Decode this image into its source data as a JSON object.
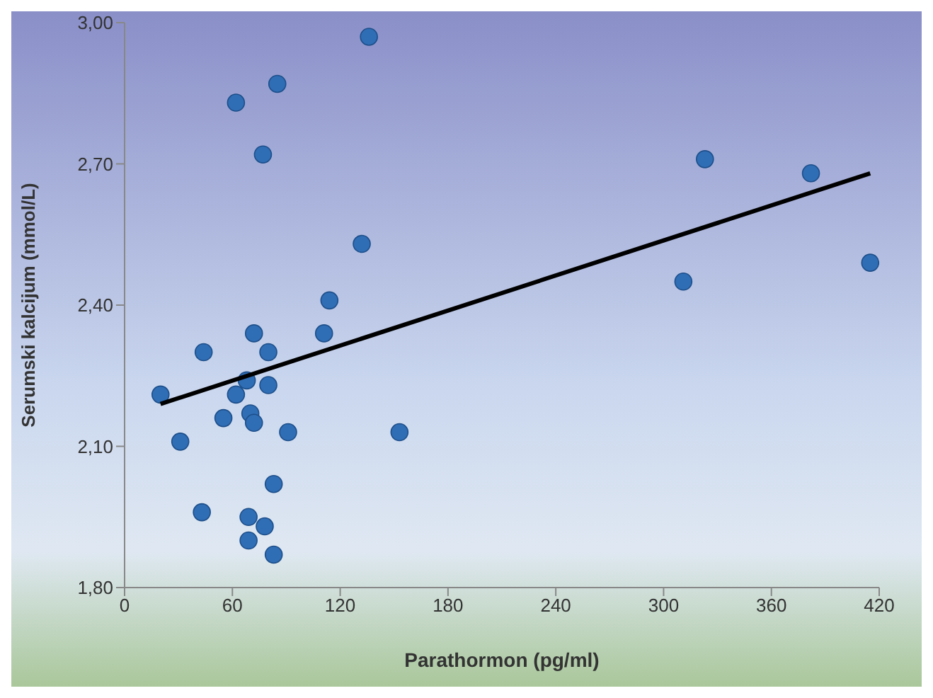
{
  "chart_data": {
    "type": "scatter",
    "xlabel": "Parathormon (pg/ml)",
    "ylabel": "Serumski kalcijum (mmol/L)",
    "xlim": [
      0,
      420
    ],
    "xticks": [
      0,
      60,
      120,
      180,
      240,
      300,
      360,
      420
    ],
    "ylim": [
      1.8,
      3.0
    ],
    "yticks": [
      {
        "value": 1.8,
        "label": "1,80"
      },
      {
        "value": 2.1,
        "label": "2,10"
      },
      {
        "value": 2.4,
        "label": "2,40"
      },
      {
        "value": 2.7,
        "label": "2,70"
      },
      {
        "value": 3.0,
        "label": "3,00"
      }
    ],
    "grid": false,
    "legend": false,
    "marker": "circle",
    "series": [
      {
        "color": "#2f6db5",
        "x": [
          136,
          85,
          62,
          77,
          132,
          114,
          111,
          72,
          44,
          80,
          68,
          80,
          62,
          20,
          70,
          55,
          72,
          91,
          31,
          153,
          83,
          43,
          69,
          78,
          69,
          83,
          323,
          382,
          311,
          415
        ],
        "values": [
          2.97,
          2.87,
          2.83,
          2.72,
          2.53,
          2.41,
          2.34,
          2.34,
          2.3,
          2.3,
          2.24,
          2.23,
          2.21,
          2.21,
          2.17,
          2.16,
          2.15,
          2.13,
          2.11,
          2.13,
          2.02,
          1.96,
          1.95,
          1.93,
          1.9,
          1.87,
          2.71,
          2.68,
          2.45,
          2.49
        ]
      },
      {
        "type": "line",
        "marker": "none",
        "color": "#000000",
        "x": [
          20,
          415
        ],
        "values": [
          2.19,
          2.68
        ]
      }
    ]
  }
}
